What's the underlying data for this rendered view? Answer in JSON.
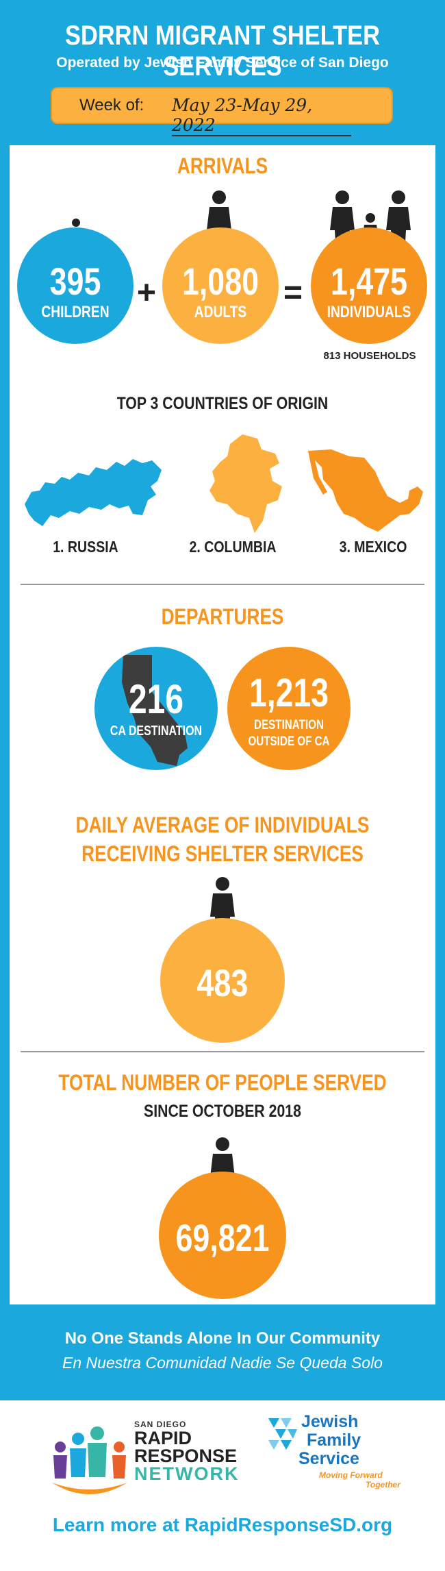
{
  "header": {
    "title": "SDRRN MIGRANT SHELTER SERVICES",
    "subtitle": "Operated by Jewish Family Service of San Diego",
    "week_label": "Week of:",
    "week_value": "May 23-May 29, 2022"
  },
  "arrivals": {
    "title": "ARRIVALS",
    "children_value": "395",
    "children_label": "CHILDREN",
    "plus": "+",
    "adults_value": "1,080",
    "adults_label": "ADULTS",
    "equals": "=",
    "individuals_value": "1,475",
    "individuals_label": "INDIVIDUALS",
    "households": "813 HOUSEHOLDS"
  },
  "countries": {
    "title": "TOP 3 COUNTRIES OF ORIGIN",
    "items": [
      "1. RUSSIA",
      "2. COLUMBIA",
      "3. MEXICO"
    ]
  },
  "departures": {
    "title": "DEPARTURES",
    "ca_value": "216",
    "ca_label": "CA DESTINATION",
    "outside_value": "1,213",
    "outside_label_1": "DESTINATION",
    "outside_label_2": "OUTSIDE OF CA"
  },
  "daily": {
    "title_1": "DAILY AVERAGE OF INDIVIDUALS",
    "title_2": "RECEIVING SHELTER SERVICES",
    "value": "483"
  },
  "total": {
    "title": "TOTAL NUMBER OF PEOPLE SERVED",
    "subtitle": "SINCE OCTOBER 2018",
    "value": "69,821"
  },
  "footer": {
    "tagline_en": "No One Stands Alone In Our Community",
    "tagline_es": "En Nuestra Comunidad Nadie Se Queda Solo",
    "rrn_small": "SAN DIEGO",
    "rrn_line1": "RAPID",
    "rrn_line2": "RESPONSE",
    "rrn_line3": "NETWORK",
    "jfs_line1": "Jewish",
    "jfs_line2": "Family",
    "jfs_line3": "Service",
    "jfs_tag1": "Moving Forward",
    "jfs_tag2": "Together",
    "learn_more": "Learn more at RapidResponseSD.org"
  },
  "colors": {
    "blue": "#1ba8dd",
    "yellow": "#fbb040",
    "orange": "#f7941d",
    "dark": "#222222"
  }
}
